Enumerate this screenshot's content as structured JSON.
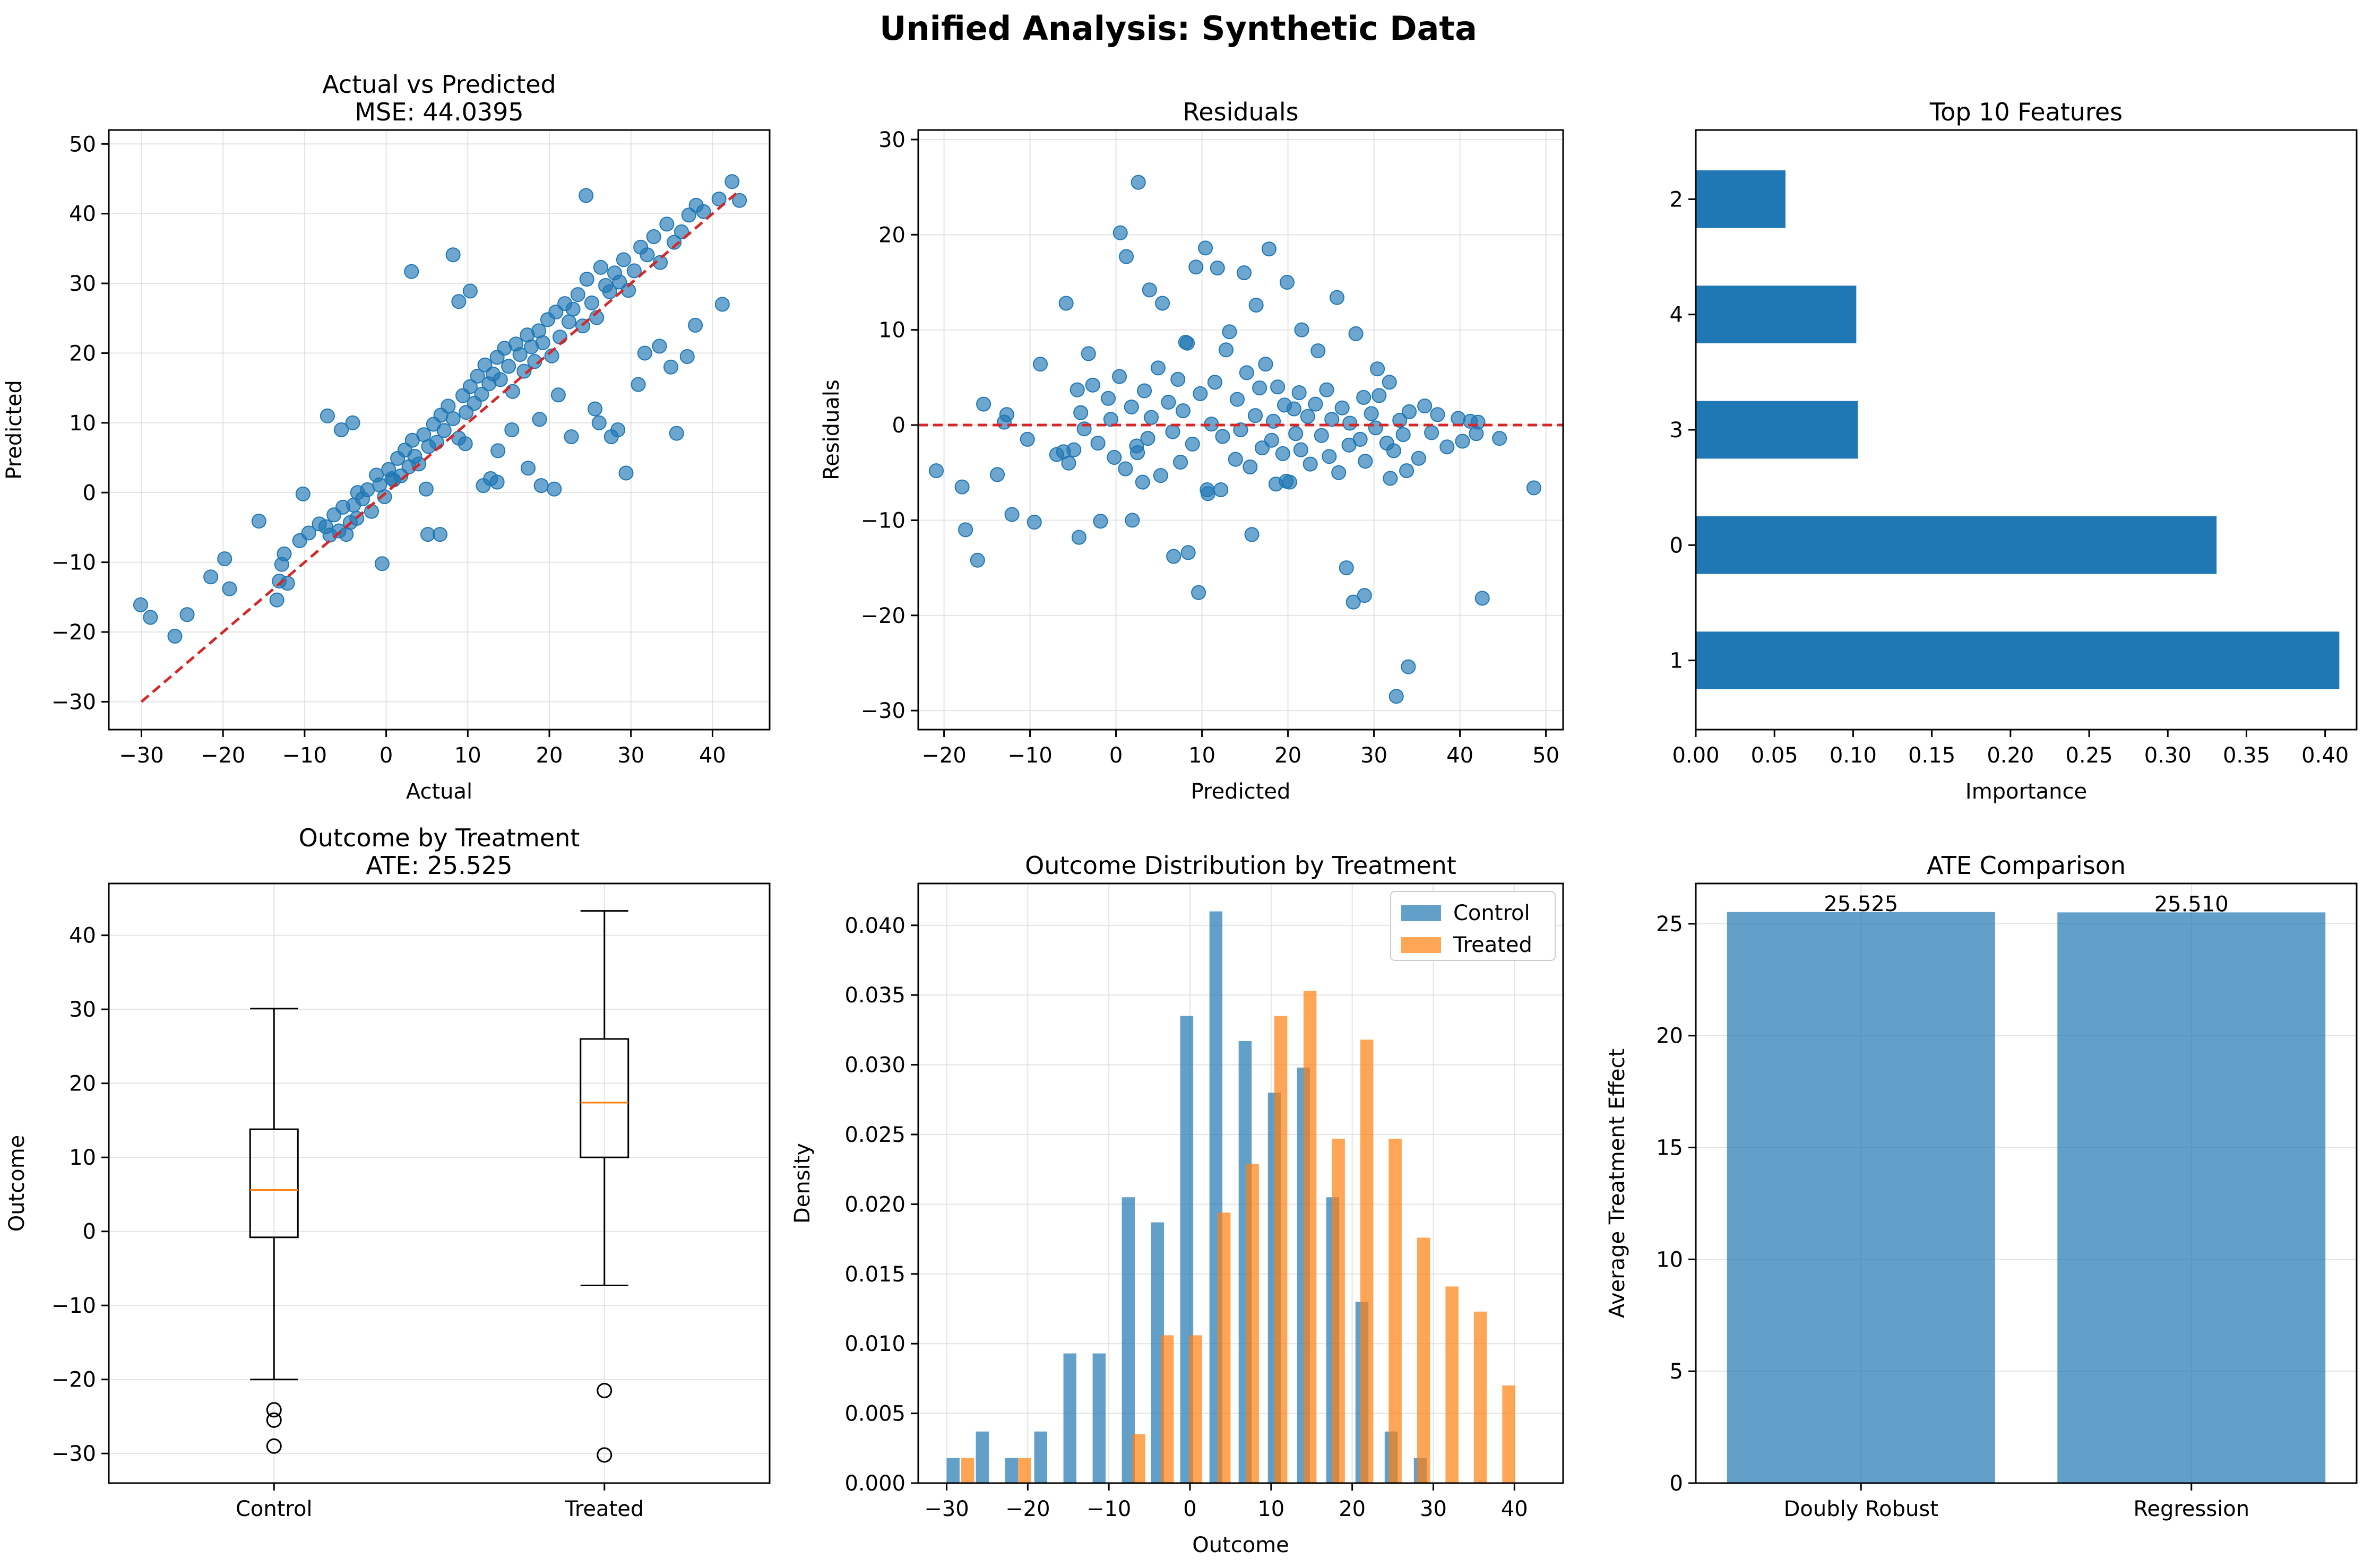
{
  "figure": {
    "title": "Unified Analysis: Synthetic Data"
  },
  "colors": {
    "blue": "#1f77b4",
    "orange": "#ff7f0e",
    "red": "#d62728",
    "grid": "#d9d9d9"
  },
  "chart_data": [
    {
      "id": "p1",
      "type": "scatter",
      "title": "Actual vs Predicted",
      "subtitle": "MSE: 44.0395",
      "xlabel": "Actual",
      "ylabel": "Predicted",
      "xlim": [
        -34,
        47
      ],
      "ylim": [
        -34,
        52
      ],
      "xticks": [
        -30,
        -20,
        -10,
        0,
        10,
        20,
        30,
        40
      ],
      "yticks": [
        -30,
        -20,
        -10,
        0,
        10,
        20,
        30,
        40,
        50
      ],
      "grid": true,
      "reference_line": {
        "x": [
          -30,
          43
        ],
        "y": [
          -30,
          43
        ],
        "style": "dashed"
      },
      "x": [
        -30.1,
        -28.9,
        -25.9,
        -24.4,
        -21.5,
        -19.8,
        -19.2,
        -15.6,
        -13.4,
        -13.1,
        -12.8,
        -12.5,
        -12.1,
        -10.6,
        -10.2,
        -9.5,
        -8.2,
        -7.4,
        -6.9,
        -6.4,
        -5.8,
        -5.3,
        -4.9,
        -4.4,
        -4.0,
        -3.6,
        -2.9,
        -2.3,
        -1.8,
        -1.2,
        -0.8,
        -0.2,
        0.3,
        0.9,
        1.4,
        1.8,
        2.3,
        2.8,
        3.2,
        3.5,
        4.0,
        4.6,
        5.2,
        5.8,
        6.2,
        6.7,
        7.1,
        7.6,
        8.2,
        8.9,
        9.4,
        9.8,
        10.3,
        10.8,
        11.2,
        11.7,
        12.1,
        12.6,
        13.1,
        13.6,
        14.0,
        14.5,
        15.0,
        15.5,
        15.9,
        16.4,
        16.9,
        17.3,
        17.8,
        18.2,
        18.7,
        19.2,
        19.8,
        20.3,
        20.8,
        21.3,
        21.9,
        22.4,
        22.9,
        23.5,
        24.1,
        24.6,
        25.2,
        25.8,
        26.3,
        26.9,
        27.4,
        28.0,
        28.6,
        29.1,
        29.7,
        30.4,
        31.2,
        32.0,
        32.8,
        33.6,
        34.4,
        35.3,
        36.2,
        37.1,
        38.0,
        38.9,
        40.8,
        42.4,
        43.3,
        3.1,
        8.2,
        8.9,
        10.3,
        24.5,
        -7.2,
        -5.5,
        -4.1,
        -0.5,
        5.1,
        6.6,
        11.9,
        12.8,
        13.6,
        17.4,
        19.0,
        20.6,
        22.7,
        26.1,
        27.6,
        29.4,
        30.9,
        33.5,
        35.6,
        36.9,
        -3.5,
        0.7,
        4.9,
        9.7,
        13.7,
        15.4,
        18.8,
        21.1,
        25.6,
        28.4,
        31.7,
        34.9,
        37.9,
        41.2
      ],
      "y": [
        -16.1,
        -17.9,
        -20.6,
        -17.5,
        -12.1,
        -9.5,
        -13.8,
        -4.1,
        -15.4,
        -12.7,
        -10.3,
        -8.8,
        -13.0,
        -6.9,
        -0.2,
        -5.8,
        -4.5,
        -4.9,
        -6.1,
        -3.2,
        -5.5,
        -2.1,
        -6.0,
        -4.3,
        -1.8,
        -3.7,
        -0.9,
        0.4,
        -2.7,
        2.5,
        1.1,
        -0.6,
        3.3,
        1.8,
        4.9,
        2.4,
        6.1,
        3.7,
        7.5,
        5.2,
        4.1,
        8.3,
        6.6,
        9.8,
        7.2,
        11.1,
        8.9,
        12.4,
        10.6,
        7.8,
        13.9,
        11.5,
        15.2,
        12.8,
        16.7,
        14.1,
        18.3,
        15.6,
        17.0,
        19.4,
        16.2,
        20.7,
        18.1,
        14.5,
        21.3,
        19.8,
        17.4,
        22.6,
        20.9,
        18.8,
        23.2,
        21.5,
        24.8,
        19.6,
        25.9,
        22.3,
        27.1,
        24.5,
        26.3,
        28.4,
        23.9,
        30.6,
        27.2,
        25.1,
        32.3,
        29.7,
        28.8,
        31.5,
        30.2,
        33.4,
        29.0,
        31.8,
        35.2,
        34.1,
        36.7,
        33.0,
        38.5,
        35.9,
        37.4,
        39.8,
        41.2,
        40.3,
        42.1,
        44.6,
        41.9,
        31.7,
        34.1,
        27.4,
        28.9,
        42.6,
        11.0,
        9.0,
        10.0,
        -10.2,
        -6.0,
        -6.0,
        1.0,
        2.0,
        1.5,
        3.5,
        1.0,
        0.5,
        8.0,
        10.0,
        8.0,
        2.8,
        15.5,
        21.0,
        8.5,
        19.5,
        0.0,
        2.0,
        0.5,
        7.0,
        6.0,
        9.0,
        10.5,
        14.0,
        12.0,
        9.0,
        20.0,
        18.0,
        24.0,
        27.0
      ]
    },
    {
      "id": "p2",
      "type": "scatter",
      "title": "Residuals",
      "xlabel": "Predicted",
      "ylabel": "Residuals",
      "xlim": [
        -23,
        52
      ],
      "ylim": [
        -32,
        31
      ],
      "xticks": [
        -20,
        -10,
        0,
        10,
        20,
        30,
        40,
        50
      ],
      "yticks": [
        -30,
        -20,
        -10,
        0,
        10,
        20,
        30
      ],
      "grid": true,
      "reference_line": {
        "y": 0,
        "style": "dashed"
      },
      "x": [
        -20.9,
        -17.9,
        -17.5,
        -16.1,
        -15.4,
        -13.8,
        -13.0,
        -12.7,
        -12.1,
        -10.3,
        -9.5,
        -8.8,
        -6.9,
        -6.1,
        -5.8,
        -5.5,
        -4.9,
        -4.5,
        -4.3,
        -4.1,
        -3.7,
        -3.2,
        -2.7,
        -2.1,
        -1.8,
        -0.9,
        -0.6,
        -0.2,
        0.4,
        1.1,
        1.8,
        2.4,
        2.5,
        3.3,
        3.7,
        4.1,
        4.9,
        5.2,
        6.1,
        6.6,
        7.2,
        7.5,
        7.8,
        8.3,
        8.9,
        9.8,
        10.6,
        11.1,
        11.5,
        12.4,
        12.8,
        13.9,
        14.1,
        14.5,
        15.2,
        15.6,
        16.2,
        16.7,
        17.0,
        17.4,
        18.1,
        18.3,
        18.8,
        19.4,
        19.6,
        19.8,
        20.7,
        20.9,
        21.3,
        21.5,
        22.3,
        22.6,
        23.2,
        23.9,
        24.5,
        24.8,
        25.1,
        25.9,
        26.3,
        27.1,
        27.2,
        28.4,
        28.8,
        29.0,
        29.7,
        30.2,
        30.6,
        31.5,
        31.8,
        32.3,
        33.0,
        33.4,
        34.1,
        35.2,
        35.9,
        36.7,
        37.4,
        38.5,
        39.8,
        40.3,
        41.2,
        41.9,
        42.1,
        44.6,
        48.6,
        0.5,
        1.2,
        2.6,
        3.9,
        5.4,
        8.1,
        9.3,
        10.4,
        11.8,
        13.2,
        14.9,
        16.3,
        17.8,
        19.9,
        21.6,
        23.5,
        25.7,
        27.9,
        30.4,
        32.6,
        34.0,
        42.6,
        1.9,
        3.1,
        6.7,
        8.4,
        9.6,
        10.7,
        12.2,
        15.8,
        18.6,
        20.2,
        26.8,
        27.6,
        28.9,
        31.9,
        33.8
      ],
      "y": [
        -4.8,
        -6.5,
        -11.0,
        -14.2,
        2.2,
        -5.2,
        0.3,
        1.1,
        -9.4,
        -1.5,
        -10.2,
        6.4,
        -3.1,
        -2.8,
        12.8,
        -4.0,
        -2.6,
        3.7,
        -11.8,
        1.3,
        -0.4,
        7.5,
        4.2,
        -1.9,
        -10.1,
        2.8,
        0.6,
        -3.4,
        5.1,
        -4.6,
        1.9,
        -2.2,
        -2.9,
        3.6,
        -1.4,
        0.8,
        6.0,
        -5.3,
        2.4,
        -0.7,
        4.8,
        -3.9,
        1.5,
        8.6,
        -2.0,
        3.3,
        -6.8,
        0.1,
        4.5,
        -1.2,
        7.9,
        -3.6,
        2.7,
        -0.5,
        5.5,
        -4.4,
        1.0,
        3.9,
        -2.4,
        6.4,
        -1.6,
        0.4,
        4.0,
        -3.0,
        2.1,
        -5.9,
        1.7,
        -0.9,
        3.4,
        -2.6,
        0.9,
        -4.1,
        2.2,
        -1.1,
        3.7,
        -3.3,
        0.6,
        -5.0,
        1.8,
        -2.1,
        0.2,
        -1.5,
        2.9,
        -3.8,
        1.2,
        -0.3,
        3.1,
        -1.9,
        4.5,
        -2.7,
        0.5,
        -1.0,
        1.4,
        -3.5,
        2.0,
        -0.8,
        1.1,
        -2.3,
        0.7,
        -1.7,
        0.4,
        -0.9,
        0.3,
        -1.4,
        -6.6,
        20.2,
        17.7,
        25.5,
        14.2,
        12.8,
        8.7,
        16.6,
        18.6,
        16.5,
        9.8,
        16.0,
        12.6,
        18.5,
        15.0,
        10.0,
        7.8,
        13.4,
        9.6,
        5.9,
        -28.5,
        -25.4,
        -18.2,
        -10.0,
        -6.0,
        -13.8,
        -13.4,
        -17.6,
        -7.2,
        -6.8,
        -11.5,
        -6.2,
        -6.0,
        -15.0,
        -18.6,
        -17.9,
        -5.6,
        -4.8
      ],
      "y_extra_note": ""
    },
    {
      "id": "p3",
      "type": "bar",
      "orientation": "horizontal",
      "title": "Top 10 Features",
      "xlabel": "Importance",
      "ylabel": "",
      "categories": [
        "2",
        "4",
        "3",
        "0",
        "1"
      ],
      "values": [
        0.057,
        0.102,
        0.103,
        0.331,
        0.409
      ],
      "xlim": [
        0,
        0.42
      ],
      "xticks": [
        0.0,
        0.05,
        0.1,
        0.15,
        0.2,
        0.25,
        0.3,
        0.35,
        0.4
      ],
      "xtick_labels": [
        "0.00",
        "0.05",
        "0.10",
        "0.15",
        "0.20",
        "0.25",
        "0.30",
        "0.35",
        "0.40"
      ],
      "grid": false
    },
    {
      "id": "p4",
      "type": "box",
      "title": "Outcome by Treatment",
      "subtitle": "ATE: 25.525",
      "xlabel": "",
      "ylabel": "Outcome",
      "categories": [
        "Control",
        "Treated"
      ],
      "ylim": [
        -34,
        47
      ],
      "yticks": [
        -30,
        -20,
        -10,
        0,
        10,
        20,
        30,
        40
      ],
      "grid": true,
      "boxes": [
        {
          "name": "Control",
          "whisker_low": -20,
          "q1": -0.8,
          "median": 5.6,
          "q3": 13.8,
          "whisker_high": 30.1,
          "outliers": [
            -24.1,
            -25.5,
            -29.0
          ]
        },
        {
          "name": "Treated",
          "whisker_low": -7.3,
          "q1": 10.0,
          "median": 17.4,
          "q3": 26.0,
          "whisker_high": 43.3,
          "outliers": [
            -21.5,
            -30.2
          ]
        }
      ]
    },
    {
      "id": "p5",
      "type": "bar",
      "title": "Outcome Distribution by Treatment",
      "xlabel": "Outcome",
      "ylabel": "Density",
      "xlim": [
        -33.5,
        46
      ],
      "ylim": [
        0,
        0.043
      ],
      "xticks": [
        -30,
        -20,
        -10,
        0,
        10,
        20,
        30,
        40
      ],
      "yticks": [
        0.0,
        0.005,
        0.01,
        0.015,
        0.02,
        0.025,
        0.03,
        0.035,
        0.04
      ],
      "ytick_labels": [
        "0.000",
        "0.005",
        "0.010",
        "0.015",
        "0.020",
        "0.025",
        "0.030",
        "0.035",
        "0.040"
      ],
      "grid": true,
      "legend_position": "top-right",
      "series": [
        {
          "name": "Control",
          "x": [
            -29.2,
            -25.6,
            -22.0,
            -18.4,
            -14.8,
            -11.2,
            -7.6,
            -4.0,
            -0.4,
            3.2,
            6.8,
            10.4,
            14.0,
            17.6,
            21.2,
            24.8,
            28.4
          ],
          "values": [
            0.0018,
            0.0037,
            0.0018,
            0.0037,
            0.0093,
            0.0093,
            0.0205,
            0.0187,
            0.0335,
            0.041,
            0.0317,
            0.028,
            0.0298,
            0.0205,
            0.013,
            0.0037,
            0.0018
          ]
        },
        {
          "name": "Treated",
          "x": [
            -27.4,
            -20.4,
            -6.3,
            -2.8,
            0.7,
            4.2,
            7.7,
            11.2,
            14.8,
            18.3,
            21.8,
            25.3,
            28.8,
            32.3,
            35.8,
            39.3,
            42.8
          ],
          "values": [
            0.0018,
            0.0018,
            0.0035,
            0.0106,
            0.0106,
            0.0194,
            0.0229,
            0.0335,
            0.0353,
            0.0247,
            0.0318,
            0.0247,
            0.0176,
            0.0141,
            0.0123,
            0.007,
            0.0
          ]
        }
      ],
      "bar_width": 1.6
    },
    {
      "id": "p6",
      "type": "bar",
      "title": "ATE Comparison",
      "xlabel": "",
      "ylabel": "Average Treatment Effect",
      "categories": [
        "Doubly Robust",
        "Regression"
      ],
      "values": [
        25.525,
        25.51
      ],
      "value_labels": [
        "25.525",
        "25.510"
      ],
      "ylim": [
        0,
        26.8
      ],
      "yticks": [
        0,
        5,
        10,
        15,
        20,
        25
      ],
      "grid": true
    }
  ]
}
